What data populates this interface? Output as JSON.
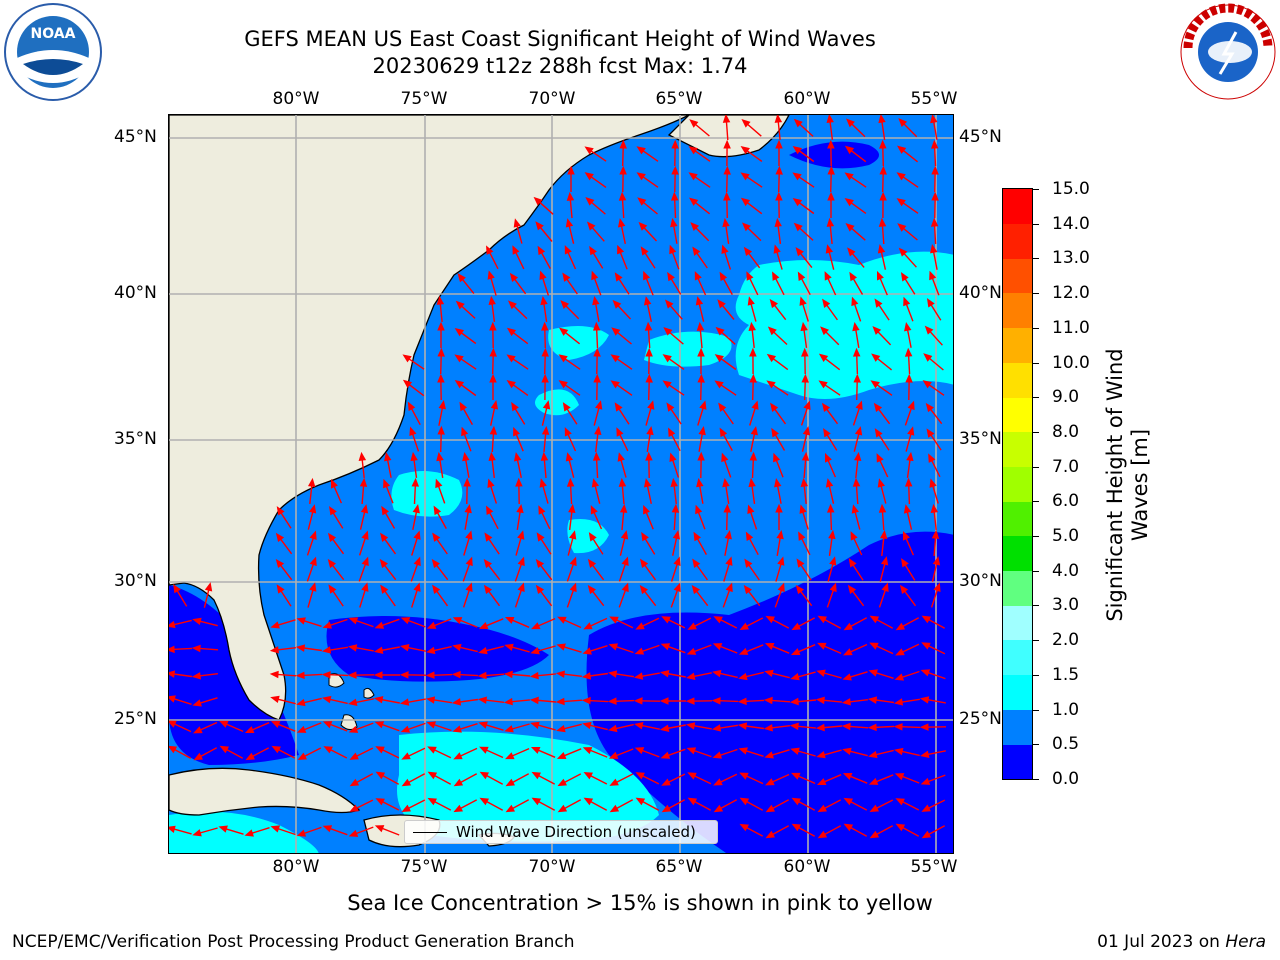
{
  "header": {
    "title_line1": "GEFS MEAN US East Coast Significant Height of Wind Waves",
    "title_line2": "20230629 t12z 288h fcst   Max: 1.74"
  },
  "logos": {
    "left": {
      "icon": "noaa-logo",
      "text": "NOAA"
    },
    "right": {
      "icon": "nws-logo",
      "text": "NATIONAL WEATHER SERVICE"
    }
  },
  "map": {
    "longitude_labels": [
      "80°W",
      "75°W",
      "70°W",
      "65°W",
      "60°W",
      "55°W"
    ],
    "latitude_labels": [
      "45°N",
      "40°N",
      "35°N",
      "30°N",
      "25°N"
    ],
    "extent": {
      "lon_min": -85,
      "lon_max": -54.3,
      "lat_min": 20.5,
      "lat_max": 45.8
    },
    "land_color": "#eeedde",
    "arrow_color": "#ff0000",
    "legend_label": "Wind Wave Direction (unscaled)"
  },
  "colorbar": {
    "title": "Significant Height of Wind Waves [m]",
    "tick_labels": [
      "15.0",
      "14.0",
      "13.0",
      "12.0",
      "11.0",
      "10.0",
      "9.0",
      "8.0",
      "7.0",
      "6.0",
      "5.0",
      "4.0",
      "3.0",
      "2.0",
      "1.5",
      "1.0",
      "0.5",
      "0.0"
    ],
    "colors_bottom_to_top": [
      "#0000ff",
      "#0080ff",
      "#00ffff",
      "#40ffff",
      "#a0ffff",
      "#60ff80",
      "#00e000",
      "#50f000",
      "#a0ff00",
      "#c8ff00",
      "#ffff00",
      "#ffe000",
      "#ffb000",
      "#ff8000",
      "#ff5000",
      "#ff2000",
      "#ff0000"
    ]
  },
  "subtitle": "Sea Ice Concentration > 15% is shown in pink to yellow",
  "footer": {
    "left": "NCEP/EMC/Verification Post Processing Product Generation Branch",
    "right_date": "01 Jul 2023 on ",
    "right_host": "Hera"
  }
}
